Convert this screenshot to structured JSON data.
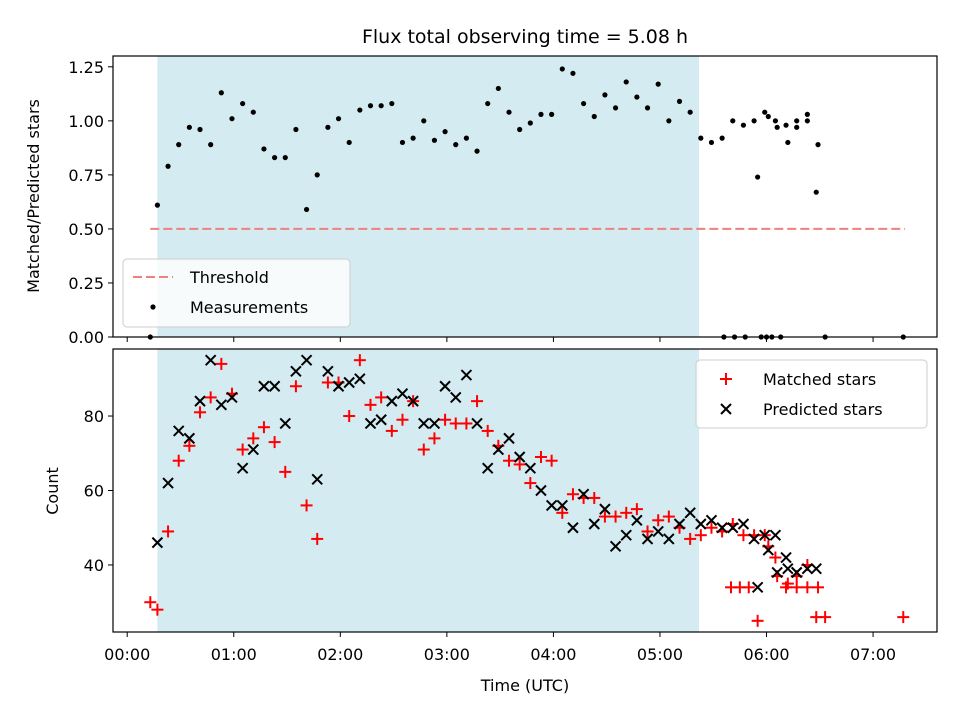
{
  "chart_data": [
    {
      "type": "scatter",
      "title": "Flux total observing time = 5.08 h",
      "xlabel": "",
      "ylabel": "Matched/Predicted stars",
      "ylim": [
        0,
        1.3
      ],
      "yticks": [
        "0.00",
        "0.25",
        "0.50",
        "0.75",
        "1.00",
        "1.25"
      ],
      "xlim": [
        "-00:08",
        "07:36"
      ],
      "shaded_range": [
        "00:17",
        "05:22"
      ],
      "shade_color": "#d4ebf1",
      "legend": {
        "placement": "lower-left",
        "entries": [
          "Threshold",
          "Measurements"
        ]
      },
      "threshold": {
        "name": "Threshold",
        "y": 0.5,
        "x_range": [
          "00:13",
          "07:18"
        ],
        "color": "#f07f7f"
      },
      "series": [
        {
          "name": "Measurements",
          "color": "#000000",
          "marker": "dot",
          "points": [
            [
              "00:13",
              0.0
            ],
            [
              "00:17",
              0.61
            ],
            [
              "00:23",
              0.79
            ],
            [
              "00:29",
              0.89
            ],
            [
              "00:35",
              0.97
            ],
            [
              "00:41",
              0.96
            ],
            [
              "00:47",
              0.89
            ],
            [
              "00:53",
              1.13
            ],
            [
              "00:59",
              1.01
            ],
            [
              "01:05",
              1.08
            ],
            [
              "01:11",
              1.04
            ],
            [
              "01:17",
              0.87
            ],
            [
              "01:23",
              0.83
            ],
            [
              "01:29",
              0.83
            ],
            [
              "01:35",
              0.96
            ],
            [
              "01:41",
              0.59
            ],
            [
              "01:47",
              0.75
            ],
            [
              "01:53",
              0.97
            ],
            [
              "01:59",
              1.01
            ],
            [
              "02:05",
              0.9
            ],
            [
              "02:11",
              1.05
            ],
            [
              "02:17",
              1.07
            ],
            [
              "02:23",
              1.07
            ],
            [
              "02:29",
              1.08
            ],
            [
              "02:35",
              0.9
            ],
            [
              "02:41",
              0.92
            ],
            [
              "02:47",
              1.0
            ],
            [
              "02:53",
              0.91
            ],
            [
              "02:59",
              0.95
            ],
            [
              "03:05",
              0.89
            ],
            [
              "03:11",
              0.92
            ],
            [
              "03:17",
              0.86
            ],
            [
              "03:23",
              1.08
            ],
            [
              "03:29",
              1.15
            ],
            [
              "03:35",
              1.04
            ],
            [
              "03:41",
              0.96
            ],
            [
              "03:47",
              0.99
            ],
            [
              "03:53",
              1.03
            ],
            [
              "03:59",
              1.03
            ],
            [
              "04:05",
              1.24
            ],
            [
              "04:11",
              1.22
            ],
            [
              "04:17",
              1.08
            ],
            [
              "04:23",
              1.02
            ],
            [
              "04:29",
              1.12
            ],
            [
              "04:35",
              1.06
            ],
            [
              "04:41",
              1.18
            ],
            [
              "04:47",
              1.11
            ],
            [
              "04:53",
              1.06
            ],
            [
              "04:59",
              1.17
            ],
            [
              "05:05",
              1.0
            ],
            [
              "05:11",
              1.09
            ],
            [
              "05:17",
              1.04
            ],
            [
              "05:23",
              0.92
            ],
            [
              "05:29",
              0.9
            ],
            [
              "05:35",
              0.92
            ],
            [
              "05:41",
              1.0
            ],
            [
              "05:47",
              0.98
            ],
            [
              "05:53",
              1.0
            ],
            [
              "05:59",
              1.04
            ],
            [
              "06:05",
              1.0
            ],
            [
              "06:11",
              0.98
            ],
            [
              "06:17",
              1.0
            ],
            [
              "06:23",
              1.0
            ],
            [
              "06:29",
              0.89
            ],
            [
              "05:36",
              0.0
            ],
            [
              "05:42",
              0.0
            ],
            [
              "05:48",
              0.0
            ],
            [
              "05:57",
              0.0
            ],
            [
              "06:00",
              0.0
            ],
            [
              "06:03",
              0.0
            ],
            [
              "06:08",
              0.0
            ],
            [
              "05:55",
              0.74
            ],
            [
              "06:01",
              1.02
            ],
            [
              "06:06",
              0.97
            ],
            [
              "06:12",
              0.9
            ],
            [
              "06:17",
              0.97
            ],
            [
              "06:23",
              1.03
            ],
            [
              "06:28",
              0.67
            ],
            [
              "06:33",
              0.0
            ],
            [
              "07:17",
              0.0
            ]
          ]
        }
      ]
    },
    {
      "type": "scatter",
      "title": "",
      "xlabel": "Time (UTC)",
      "ylabel": "Count",
      "ylim": [
        22,
        98
      ],
      "yticks": [
        "40",
        "60",
        "80"
      ],
      "xticks": [
        "00:00",
        "01:00",
        "02:00",
        "03:00",
        "04:00",
        "05:00",
        "06:00",
        "07:00"
      ],
      "xlim": [
        "-00:08",
        "07:36"
      ],
      "shaded_range": [
        "00:17",
        "05:22"
      ],
      "legend": {
        "placement": "top-right",
        "entries": [
          "Matched stars",
          "Predicted stars"
        ]
      },
      "series": [
        {
          "name": "Matched stars",
          "color": "#ff0000",
          "marker": "plus",
          "points": [
            [
              "00:13",
              30
            ],
            [
              "00:17",
              28
            ],
            [
              "00:23",
              49
            ],
            [
              "00:29",
              68
            ],
            [
              "00:35",
              72
            ],
            [
              "00:41",
              81
            ],
            [
              "00:47",
              85
            ],
            [
              "00:53",
              94
            ],
            [
              "00:59",
              86
            ],
            [
              "01:05",
              71
            ],
            [
              "01:11",
              74
            ],
            [
              "01:17",
              77
            ],
            [
              "01:23",
              73
            ],
            [
              "01:29",
              65
            ],
            [
              "01:35",
              88
            ],
            [
              "01:41",
              56
            ],
            [
              "01:47",
              47
            ],
            [
              "01:53",
              89
            ],
            [
              "01:59",
              89
            ],
            [
              "02:05",
              80
            ],
            [
              "02:11",
              95
            ],
            [
              "02:17",
              83
            ],
            [
              "02:23",
              85
            ],
            [
              "02:29",
              76
            ],
            [
              "02:35",
              79
            ],
            [
              "02:41",
              84
            ],
            [
              "02:47",
              71
            ],
            [
              "02:53",
              74
            ],
            [
              "02:59",
              79
            ],
            [
              "03:05",
              78
            ],
            [
              "03:11",
              78
            ],
            [
              "03:17",
              84
            ],
            [
              "03:23",
              76
            ],
            [
              "03:29",
              72
            ],
            [
              "03:35",
              68
            ],
            [
              "03:41",
              67
            ],
            [
              "03:47",
              62
            ],
            [
              "03:53",
              69
            ],
            [
              "03:59",
              68
            ],
            [
              "04:05",
              54
            ],
            [
              "04:11",
              59
            ],
            [
              "04:17",
              58
            ],
            [
              "04:23",
              58
            ],
            [
              "04:29",
              53
            ],
            [
              "04:35",
              53
            ],
            [
              "04:41",
              54
            ],
            [
              "04:47",
              55
            ],
            [
              "04:53",
              49
            ],
            [
              "04:59",
              52
            ],
            [
              "05:05",
              53
            ],
            [
              "05:11",
              50
            ],
            [
              "05:17",
              47
            ],
            [
              "05:23",
              48
            ],
            [
              "05:29",
              50
            ],
            [
              "05:35",
              49
            ],
            [
              "05:41",
              51
            ],
            [
              "05:47",
              48
            ],
            [
              "05:53",
              48
            ],
            [
              "05:59",
              48
            ],
            [
              "06:05",
              42
            ],
            [
              "06:11",
              34
            ],
            [
              "06:17",
              34
            ],
            [
              "06:23",
              34
            ],
            [
              "06:29",
              34
            ],
            [
              "05:40",
              34
            ],
            [
              "05:45",
              34
            ],
            [
              "05:50",
              34
            ],
            [
              "05:55",
              25
            ],
            [
              "06:01",
              45
            ],
            [
              "06:06",
              37
            ],
            [
              "06:12",
              35
            ],
            [
              "06:17",
              37
            ],
            [
              "06:23",
              40
            ],
            [
              "06:28",
              26
            ],
            [
              "06:33",
              26
            ],
            [
              "07:17",
              26
            ]
          ]
        },
        {
          "name": "Predicted stars",
          "color": "#000000",
          "marker": "x",
          "points": [
            [
              "00:17",
              46
            ],
            [
              "00:23",
              62
            ],
            [
              "00:29",
              76
            ],
            [
              "00:35",
              74
            ],
            [
              "00:41",
              84
            ],
            [
              "00:47",
              95
            ],
            [
              "00:53",
              83
            ],
            [
              "00:59",
              85
            ],
            [
              "01:05",
              66
            ],
            [
              "01:11",
              71
            ],
            [
              "01:17",
              88
            ],
            [
              "01:23",
              88
            ],
            [
              "01:29",
              78
            ],
            [
              "01:35",
              92
            ],
            [
              "01:41",
              95
            ],
            [
              "01:47",
              63
            ],
            [
              "01:53",
              92
            ],
            [
              "01:59",
              88
            ],
            [
              "02:05",
              89
            ],
            [
              "02:11",
              90
            ],
            [
              "02:17",
              78
            ],
            [
              "02:23",
              79
            ],
            [
              "02:29",
              84
            ],
            [
              "02:35",
              86
            ],
            [
              "02:41",
              84
            ],
            [
              "02:47",
              78
            ],
            [
              "02:53",
              78
            ],
            [
              "02:59",
              88
            ],
            [
              "03:05",
              85
            ],
            [
              "03:11",
              91
            ],
            [
              "03:17",
              78
            ],
            [
              "03:23",
              66
            ],
            [
              "03:29",
              71
            ],
            [
              "03:35",
              74
            ],
            [
              "03:41",
              69
            ],
            [
              "03:47",
              66
            ],
            [
              "03:53",
              60
            ],
            [
              "03:59",
              56
            ],
            [
              "04:05",
              56
            ],
            [
              "04:11",
              50
            ],
            [
              "04:17",
              59
            ],
            [
              "04:23",
              51
            ],
            [
              "04:29",
              55
            ],
            [
              "04:35",
              45
            ],
            [
              "04:41",
              48
            ],
            [
              "04:47",
              52
            ],
            [
              "04:53",
              47
            ],
            [
              "04:59",
              49
            ],
            [
              "05:05",
              47
            ],
            [
              "05:11",
              51
            ],
            [
              "05:17",
              54
            ],
            [
              "05:23",
              51
            ],
            [
              "05:29",
              52
            ],
            [
              "05:35",
              50
            ],
            [
              "05:41",
              50
            ],
            [
              "05:47",
              51
            ],
            [
              "05:53",
              47
            ],
            [
              "05:59",
              48
            ],
            [
              "06:05",
              48
            ],
            [
              "06:11",
              42
            ],
            [
              "06:17",
              38
            ],
            [
              "05:55",
              34
            ],
            [
              "06:01",
              44
            ],
            [
              "06:06",
              38
            ],
            [
              "06:12",
              39
            ],
            [
              "06:17",
              38
            ],
            [
              "06:23",
              39
            ],
            [
              "06:28",
              39
            ]
          ]
        }
      ]
    }
  ]
}
